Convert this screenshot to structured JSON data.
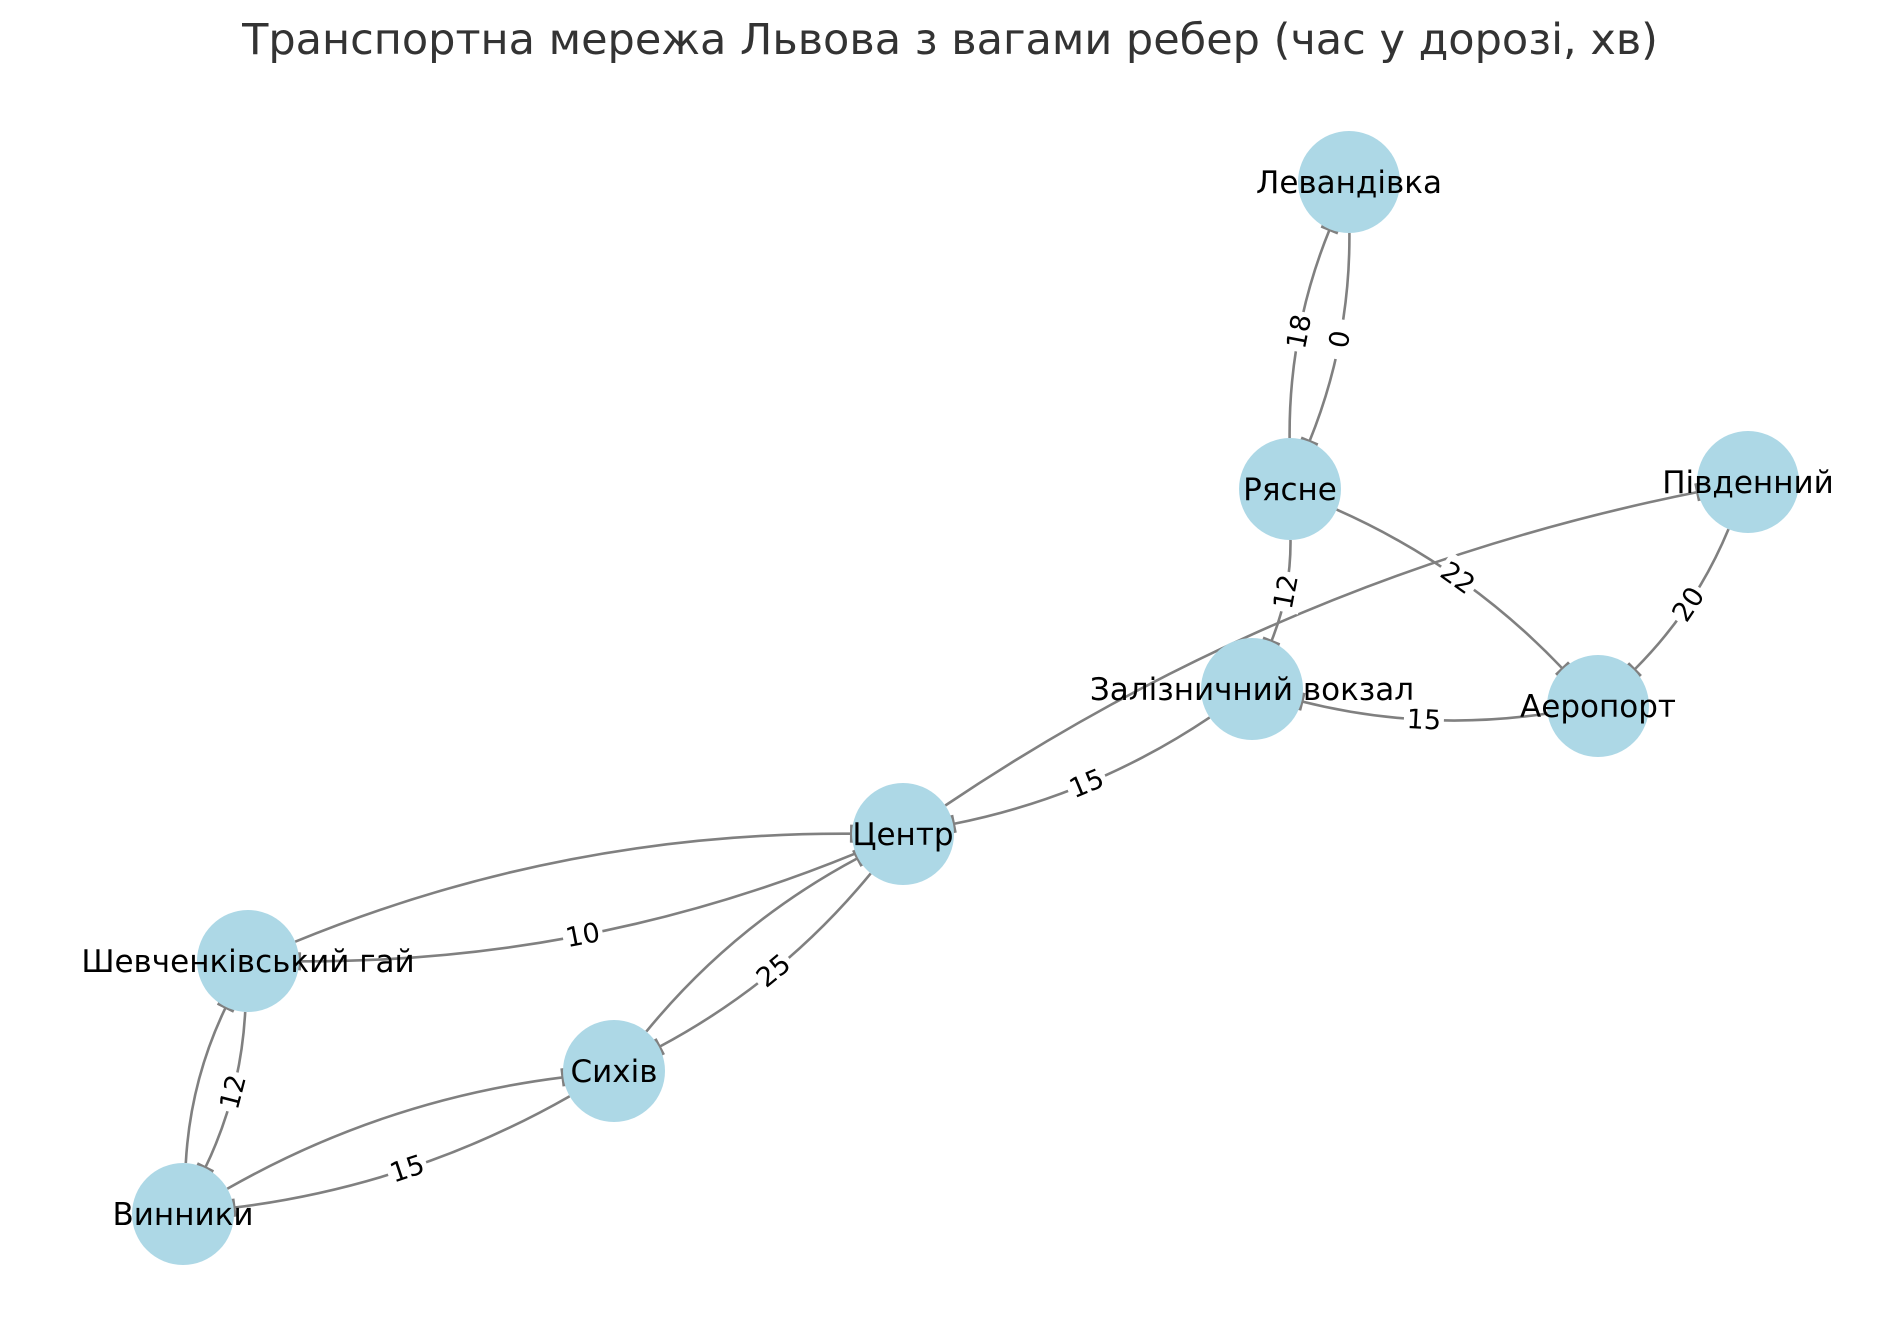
{
  "title": "Транспортна мережа Львова з вагами ребер (час у дорозі, хв)",
  "colors": {
    "node": "#add8e6",
    "edge": "#808080",
    "title": "#333333",
    "text": "#000000"
  },
  "graph": {
    "type": "directed-weighted-graph",
    "nodes": [
      {
        "id": "levandivka",
        "label": "Левандівка"
      },
      {
        "id": "riasne",
        "label": "Рясне"
      },
      {
        "id": "pivdennyi",
        "label": "Південний"
      },
      {
        "id": "vokzal",
        "label": "Залізничний вокзал"
      },
      {
        "id": "airport",
        "label": "Аеропорт"
      },
      {
        "id": "center",
        "label": "Центр"
      },
      {
        "id": "shevchenko",
        "label": "Шевченківський гай"
      },
      {
        "id": "sykhiv",
        "label": "Сихів"
      },
      {
        "id": "vynnyky",
        "label": "Винники"
      }
    ],
    "edges": [
      {
        "from": "riasne",
        "to": "levandivka",
        "label": "18"
      },
      {
        "from": "levandivka",
        "to": "riasne",
        "label": "0"
      },
      {
        "from": "riasne",
        "to": "airport",
        "label": "22"
      },
      {
        "from": "pivdennyi",
        "to": "airport",
        "label": "20"
      },
      {
        "from": "riasne",
        "to": "vokzal",
        "label": "12"
      },
      {
        "from": "airport",
        "to": "vokzal",
        "label": "15"
      },
      {
        "from": "vokzal",
        "to": "center",
        "label": "15"
      },
      {
        "from": "center",
        "to": "pivdennyi",
        "label": ""
      },
      {
        "from": "center",
        "to": "shevchenko",
        "label": "10"
      },
      {
        "from": "shevchenko",
        "to": "center",
        "label": ""
      },
      {
        "from": "center",
        "to": "sykhiv",
        "label": "25"
      },
      {
        "from": "sykhiv",
        "to": "center",
        "label": ""
      },
      {
        "from": "sykhiv",
        "to": "vynnyky",
        "label": "15"
      },
      {
        "from": "vynnyky",
        "to": "sykhiv",
        "label": ""
      },
      {
        "from": "shevchenko",
        "to": "vynnyky",
        "label": "12"
      },
      {
        "from": "vynnyky",
        "to": "shevchenko",
        "label": ""
      }
    ]
  }
}
